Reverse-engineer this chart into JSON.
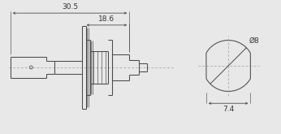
{
  "bg_color": "#e8e8e8",
  "line_color": "#4a4a4a",
  "text_color": "#333333",
  "dim_30_5": "30.5",
  "dim_18_6": "18.6",
  "dim_phi8": "Ø8",
  "dim_7_4": "7.4",
  "font_size": 6.5,
  "fig_w": 3.46,
  "fig_h": 1.65,
  "dpi": 100
}
